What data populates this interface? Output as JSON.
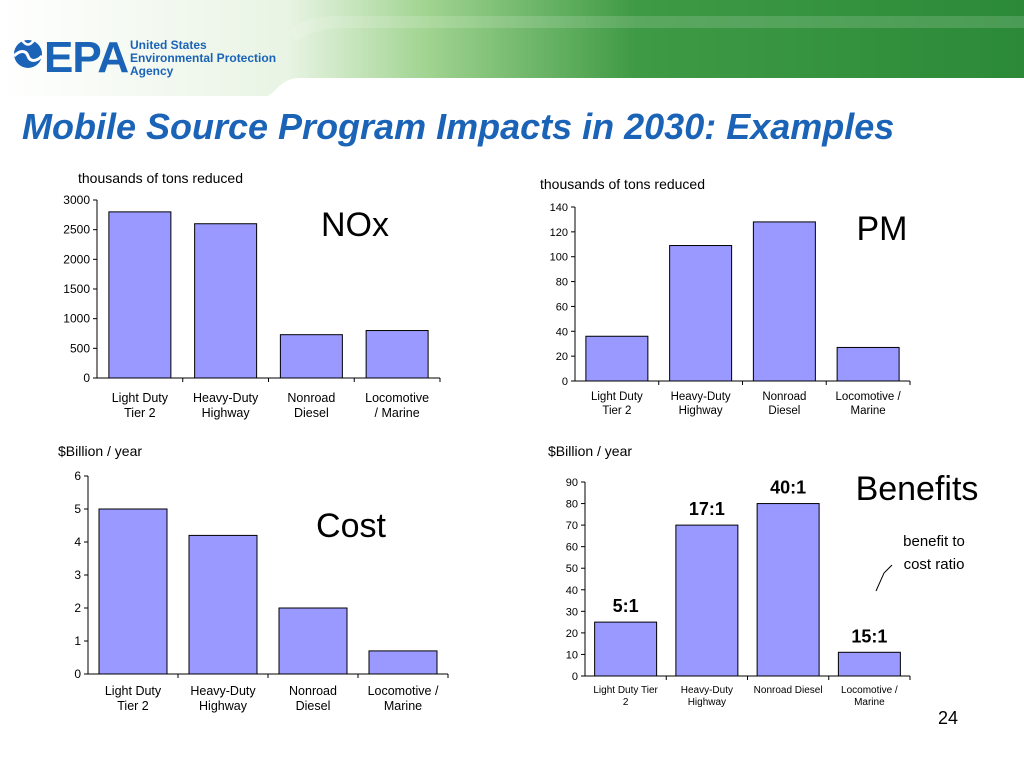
{
  "header": {
    "logo_text": "EPA",
    "agency_line1": "United States",
    "agency_line2": "Environmental Protection",
    "agency_line3": "Agency",
    "colors": {
      "blue": "#1a63b6",
      "green": "#2f9a3e",
      "light_green": "#9fd38f"
    }
  },
  "title": "Mobile Source Program Impacts in 2030:  Examples",
  "page_number": "24",
  "chart_data": [
    {
      "id": "nox",
      "type": "bar",
      "title": "NOx",
      "ylabel": "thousands of  tons reduced",
      "categories": [
        [
          "Light Duty",
          "Tier 2"
        ],
        [
          "Heavy-Duty",
          "Highway"
        ],
        [
          "Nonroad",
          "Diesel"
        ],
        [
          "Locomotive",
          "/ Marine"
        ]
      ],
      "values": [
        2800,
        2600,
        730,
        800
      ],
      "ylim": [
        0,
        3000
      ],
      "yticks": [
        "0",
        "500",
        "1000",
        "1500",
        "2000",
        "2500",
        "3000"
      ],
      "bar_color": "#9999ff",
      "grid": false
    },
    {
      "id": "pm",
      "type": "bar",
      "title": "PM",
      "ylabel": "thousands of  tons reduced",
      "categories": [
        [
          "Light Duty",
          "Tier 2"
        ],
        [
          "Heavy-Duty",
          "Highway"
        ],
        [
          "Nonroad",
          "Diesel"
        ],
        [
          "Locomotive /",
          "Marine"
        ]
      ],
      "values": [
        36,
        109,
        128,
        27
      ],
      "ylim": [
        0,
        140
      ],
      "yticks": [
        "0",
        "20",
        "40",
        "60",
        "80",
        "100",
        "120",
        "140"
      ],
      "bar_color": "#9999ff",
      "grid": false
    },
    {
      "id": "cost",
      "type": "bar",
      "title": "Cost",
      "ylabel": "$Billion / year",
      "categories": [
        [
          "Light Duty",
          "Tier 2"
        ],
        [
          "Heavy-Duty",
          "Highway"
        ],
        [
          "Nonroad",
          "Diesel"
        ],
        [
          "Locomotive /",
          "Marine"
        ]
      ],
      "values": [
        5.0,
        4.2,
        2.0,
        0.7
      ],
      "ylim": [
        0,
        6
      ],
      "yticks": [
        "0",
        "1",
        "2",
        "3",
        "4",
        "5",
        "6"
      ],
      "bar_color": "#9999ff",
      "grid": false
    },
    {
      "id": "benefits",
      "type": "bar",
      "title": "Benefits",
      "ylabel": "$Billion / year",
      "categories": [
        [
          "Light Duty Tier",
          "2"
        ],
        [
          "Heavy-Duty",
          "Highway"
        ],
        [
          "Nonroad Diesel"
        ],
        [
          "Locomotive /",
          "Marine"
        ]
      ],
      "values": [
        25,
        70,
        80,
        11
      ],
      "ylim": [
        0,
        90
      ],
      "yticks": [
        "0",
        "10",
        "20",
        "30",
        "40",
        "50",
        "60",
        "70",
        "80",
        "90"
      ],
      "bar_color": "#9999ff",
      "grid": false,
      "data_labels": [
        "5:1",
        "17:1",
        "40:1",
        "15:1"
      ],
      "annotation": [
        "benefit to",
        "cost ratio"
      ]
    }
  ]
}
